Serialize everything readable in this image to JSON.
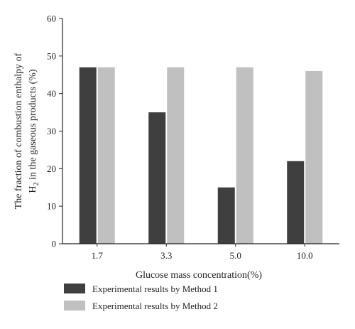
{
  "chart_data": {
    "type": "bar",
    "categories": [
      "1.7",
      "3.3",
      "5.0",
      "10.0"
    ],
    "series": [
      {
        "name": "Experimental results by Method 1",
        "values": [
          47,
          35,
          15,
          22
        ],
        "color": "#3f3f3f"
      },
      {
        "name": "Experimental results by Method 2",
        "values": [
          47,
          47,
          47,
          46
        ],
        "color": "#c0c0c0"
      }
    ],
    "xlabel": "Glucose mass concentration(%)",
    "ylabel_line1": "The fraction of combustion enthalpy of",
    "ylabel_line2_prefix": "H",
    "ylabel_line2_sub": "2",
    "ylabel_line2_suffix": " in the gaseous products (%)",
    "ylim": [
      0,
      60
    ],
    "yticks": [
      0,
      10,
      20,
      30,
      40,
      50,
      60
    ],
    "grid": false,
    "legend_position": "bottom"
  }
}
